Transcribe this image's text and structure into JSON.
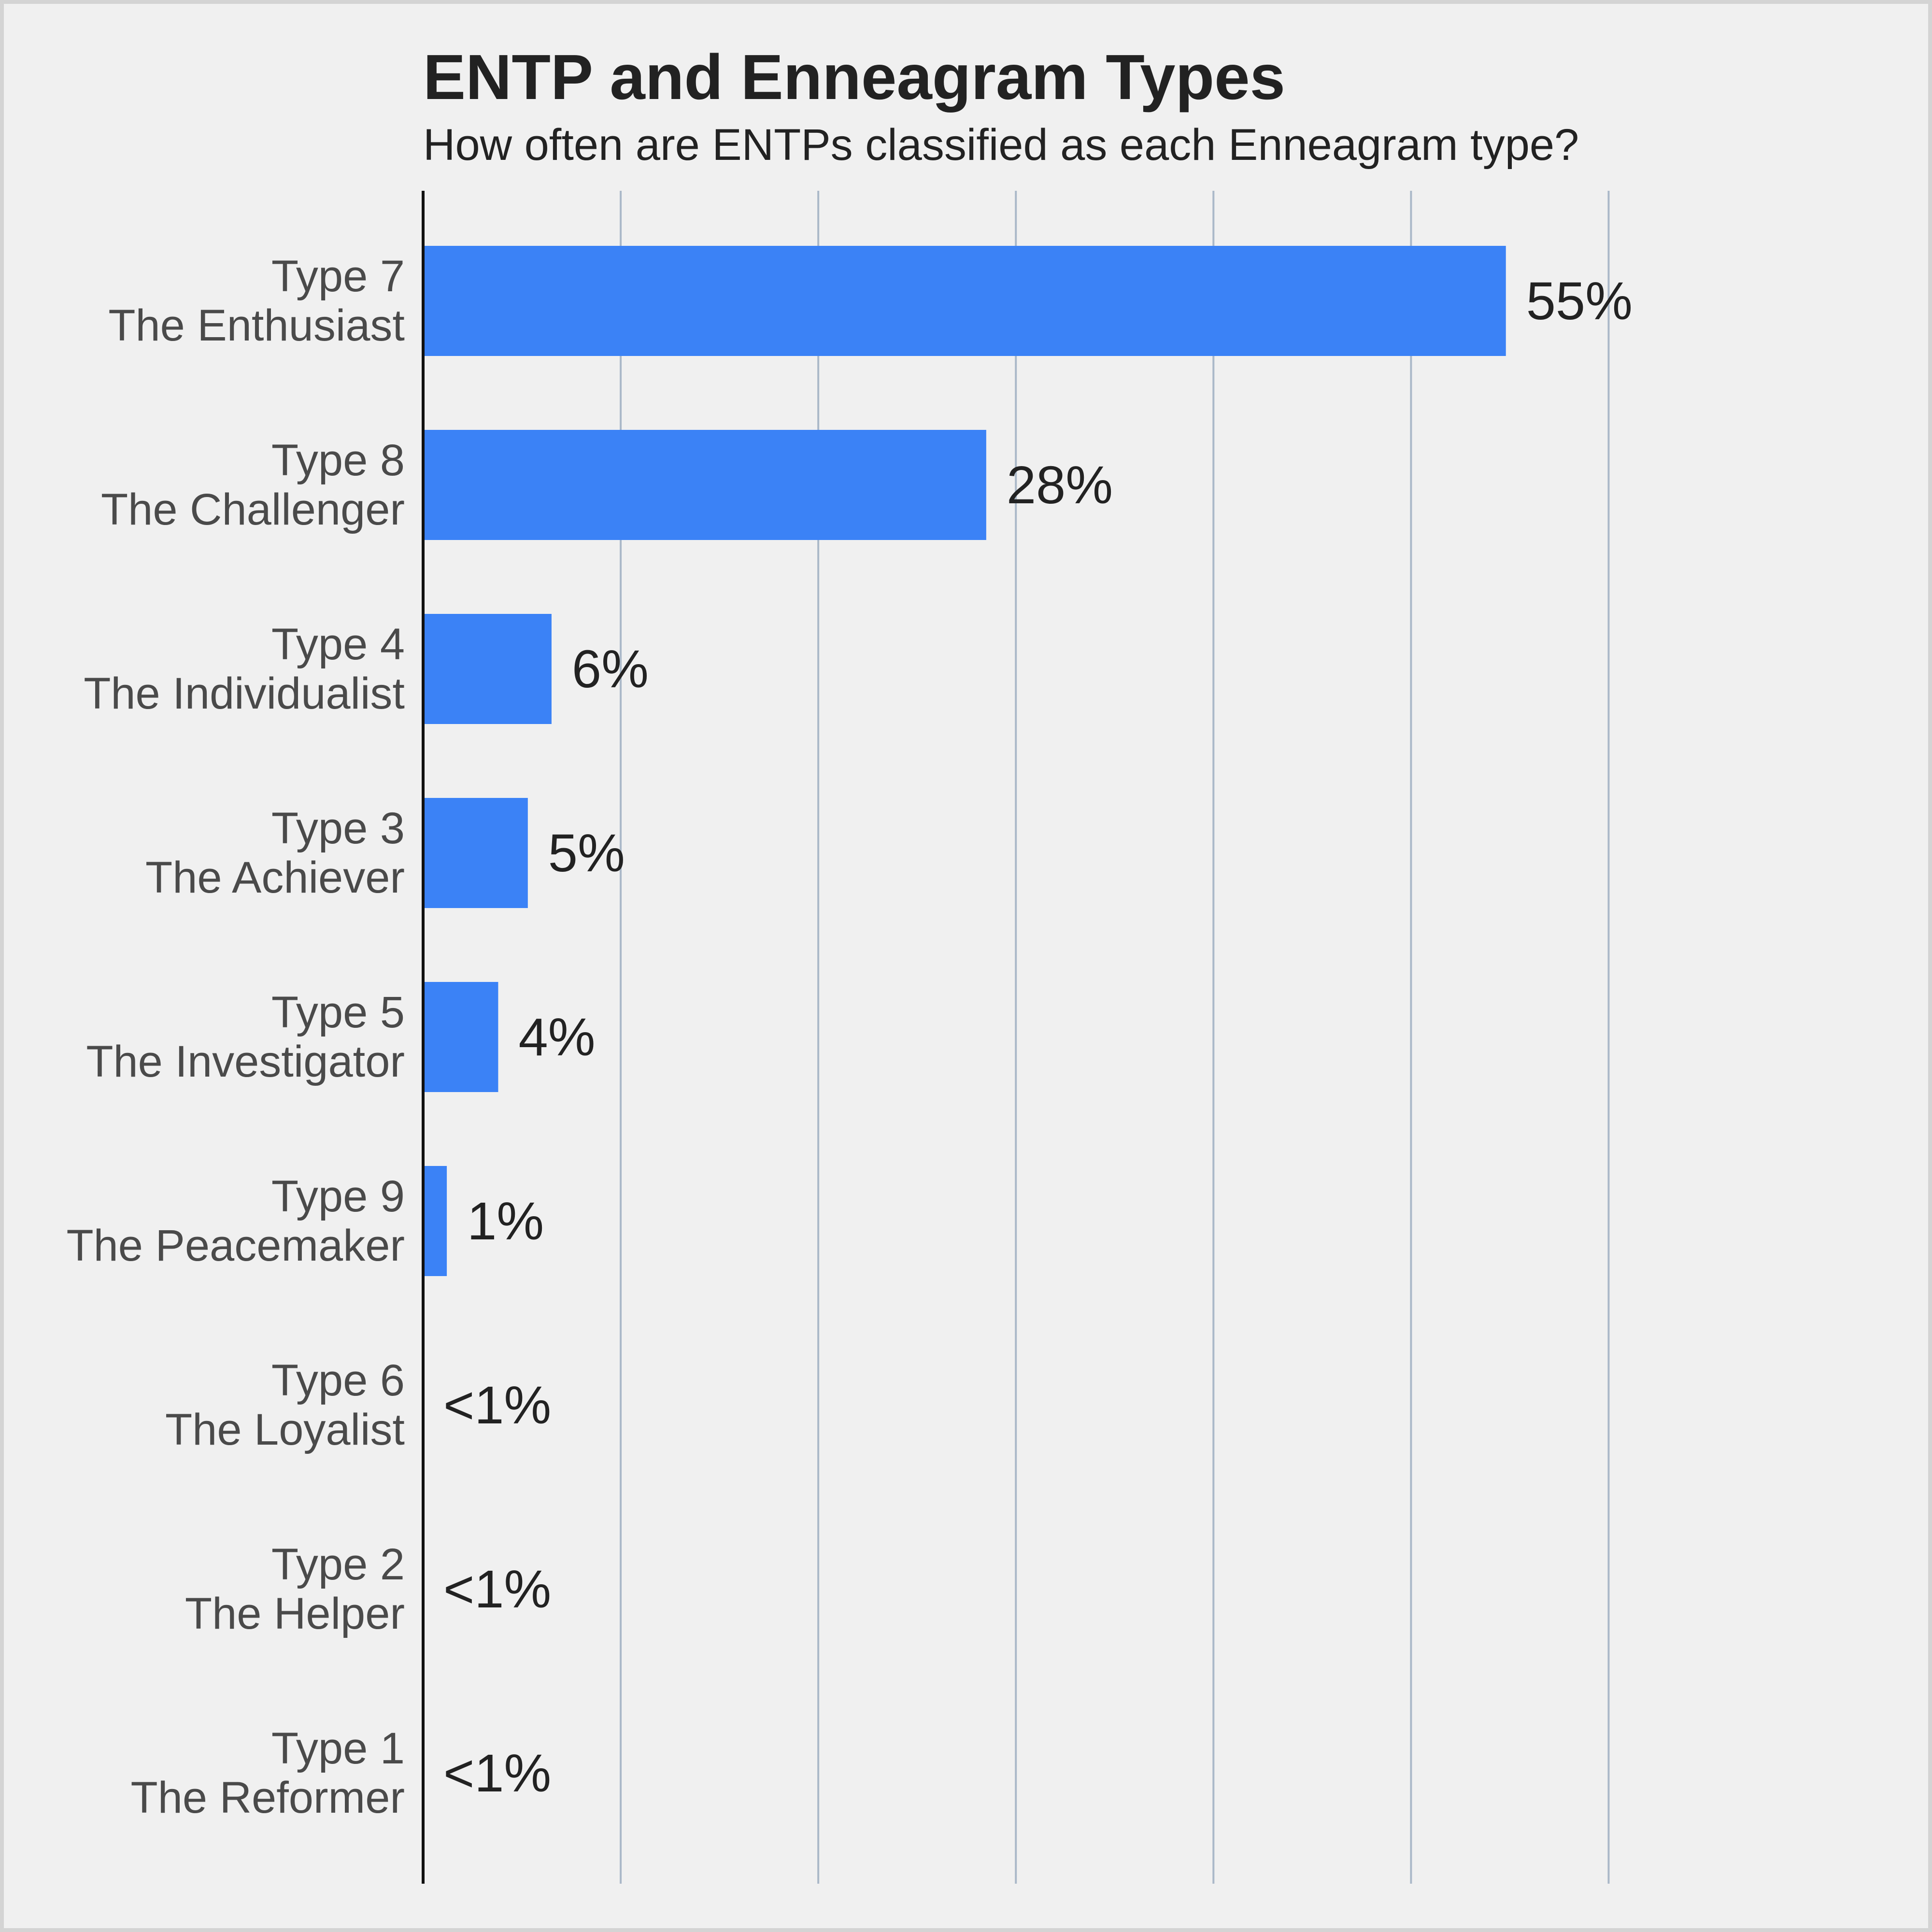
{
  "chart_data": {
    "type": "bar",
    "orientation": "horizontal",
    "title": "ENTP and Enneagram Types",
    "subtitle": "How often are ENTPs classified as each Enneagram type?",
    "xlabel": "",
    "ylabel": "",
    "categories": [
      [
        "Type 7",
        "The Enthusiast"
      ],
      [
        "Type 8",
        "The Challenger"
      ],
      [
        "Type 4",
        "The Individualist"
      ],
      [
        "Type 3",
        "The Achiever"
      ],
      [
        "Type 5",
        "The Investigator"
      ],
      [
        "Type 9",
        "The Peacemaker"
      ],
      [
        "Type 6",
        "The Loyalist"
      ],
      [
        "Type 2",
        "The Helper"
      ],
      [
        "Type 1",
        "The Reformer"
      ]
    ],
    "values": [
      54.8,
      28.5,
      6.5,
      5.3,
      3.8,
      1.2,
      0,
      0,
      0
    ],
    "data_labels": [
      "55%",
      "28%",
      "6%",
      "5%",
      "4%",
      "1%",
      "<1%",
      "<1%",
      "<1%"
    ],
    "xlim": [
      0,
      65
    ],
    "grid": true,
    "gridlines_at": [
      10,
      20,
      30,
      40,
      50,
      60
    ],
    "colors": {
      "bar": "#3b82f6",
      "grid": "#aab8c8",
      "axis": "#111111",
      "background": "#f0f0f0"
    }
  }
}
